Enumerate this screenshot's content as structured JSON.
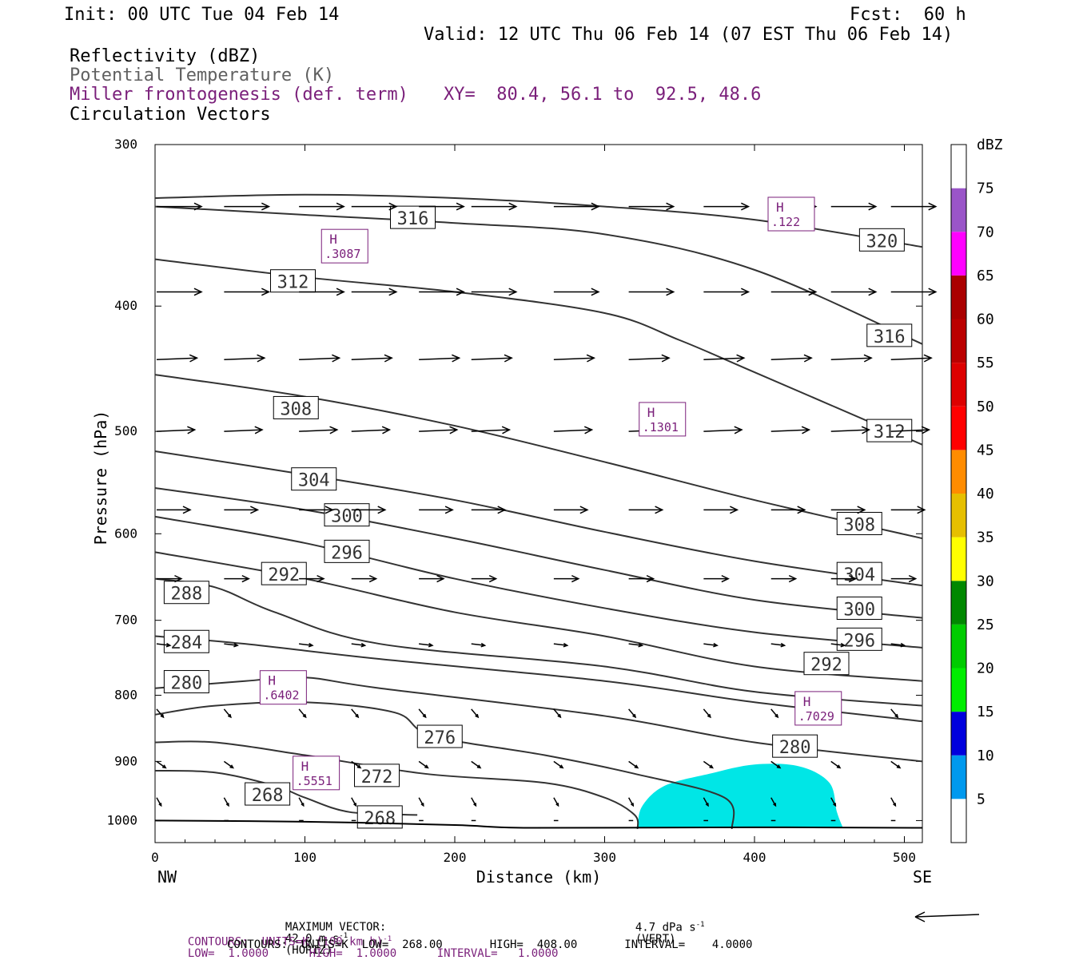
{
  "header": {
    "init": "Init: 00 UTC Tue 04 Feb 14",
    "fcst": "Fcst:  60 h",
    "valid": "Valid: 12 UTC Thu 06 Feb 14 (07 EST Thu 06 Feb 14)",
    "field1": "Reflectivity (dBZ)",
    "field2": "Potential Temperature (K)",
    "field3": "Miller frontogenesis (def. term)",
    "xy": "XY=  80.4, 56.1 to  92.5, 48.6",
    "field4": "Circulation Vectors"
  },
  "footer": {
    "max_vector_label": "MAXIMUM VECTOR:",
    "max_vector_horiz": "42.0 m s",
    "horiz_tag": "(HORIZ)",
    "max_vector_vert": "4.7 dPa s",
    "vert_tag": "(VERT)",
    "contours_purple_a": "CONTOURS:  UNITS=K (100 km h)",
    "contours_purple_b": "LOW=  1.0000      HIGH=  1.0000      INTERVAL=   1.0000",
    "contours_black": "CONTOURS:  UNITS=K  LOW=  268.00       HIGH=  408.00       INTERVAL=    4.0000",
    "sup": "-1"
  },
  "colors": {
    "theta_line": "#333333",
    "purple": "#7a1f7a",
    "reflectivity_fill": "#00e6e6"
  },
  "chart_data": {
    "type": "cross-section",
    "ylabel": "Pressure (hPa)",
    "xlabel": "Distance (km)",
    "x_left_label": "NW",
    "x_right_label": "SE",
    "x_range": [
      0,
      512
    ],
    "y_range": [
      300,
      1040
    ],
    "y_scale": "log-pressure",
    "x_ticks": [
      0,
      100,
      200,
      300,
      400,
      500
    ],
    "y_ticks": [
      300,
      400,
      500,
      600,
      700,
      800,
      900,
      1000
    ],
    "colorbar": {
      "title": "dBZ",
      "levels": [
        5,
        10,
        15,
        20,
        25,
        30,
        35,
        40,
        45,
        50,
        55,
        60,
        65,
        70,
        75
      ],
      "colors": [
        "#00e6e6",
        "#0099ee",
        "#0000dd",
        "#00ee00",
        "#00cc00",
        "#008800",
        "#ffff00",
        "#e6bf00",
        "#ff8c00",
        "#ff0000",
        "#dd0000",
        "#bb0000",
        "#aa0000",
        "#ff00ff",
        "#9a55c8",
        "#ffffff"
      ]
    },
    "theta_contours": [
      {
        "label": "320",
        "pts": [
          [
            0,
            330
          ],
          [
            100,
            328
          ],
          [
            200,
            330
          ],
          [
            300,
            335
          ],
          [
            400,
            343
          ],
          [
            512,
            360
          ]
        ],
        "lbl": [
          [
            485,
            356
          ]
        ]
      },
      {
        "label": "316",
        "pts": [
          [
            0,
            335
          ],
          [
            100,
            340
          ],
          [
            200,
            345
          ],
          [
            300,
            352
          ],
          [
            400,
            375
          ],
          [
            512,
            428
          ]
        ],
        "lbl": [
          [
            172,
            342
          ],
          [
            490,
            422
          ]
        ]
      },
      {
        "label": "312",
        "pts": [
          [
            0,
            368
          ],
          [
            100,
            380
          ],
          [
            200,
            390
          ],
          [
            300,
            405
          ],
          [
            350,
            425
          ],
          [
            400,
            450
          ],
          [
            512,
            512
          ]
        ],
        "lbl": [
          [
            92,
            383
          ],
          [
            490,
            500
          ]
        ]
      },
      {
        "label": "308",
        "pts": [
          [
            0,
            452
          ],
          [
            100,
            470
          ],
          [
            200,
            495
          ],
          [
            300,
            528
          ],
          [
            400,
            565
          ],
          [
            512,
            605
          ]
        ],
        "lbl": [
          [
            94,
            480
          ],
          [
            470,
            590
          ]
        ]
      },
      {
        "label": "304",
        "pts": [
          [
            0,
            518
          ],
          [
            100,
            540
          ],
          [
            200,
            565
          ],
          [
            300,
            598
          ],
          [
            400,
            630
          ],
          [
            512,
            658
          ]
        ],
        "lbl": [
          [
            106,
            545
          ],
          [
            470,
            645
          ]
        ]
      },
      {
        "label": "300",
        "pts": [
          [
            0,
            553
          ],
          [
            100,
            575
          ],
          [
            200,
            605
          ],
          [
            300,
            640
          ],
          [
            400,
            675
          ],
          [
            512,
            697
          ]
        ],
        "lbl": [
          [
            128,
            581
          ],
          [
            470,
            686
          ]
        ]
      },
      {
        "label": "296",
        "pts": [
          [
            0,
            582
          ],
          [
            100,
            610
          ],
          [
            200,
            650
          ],
          [
            300,
            685
          ],
          [
            400,
            715
          ],
          [
            512,
            735
          ]
        ],
        "lbl": [
          [
            128,
            620
          ],
          [
            470,
            725
          ]
        ]
      },
      {
        "label": "292",
        "pts": [
          [
            0,
            620
          ],
          [
            100,
            650
          ],
          [
            200,
            690
          ],
          [
            300,
            720
          ],
          [
            400,
            760
          ],
          [
            512,
            780
          ]
        ],
        "lbl": [
          [
            86,
            645
          ],
          [
            448,
            757
          ]
        ]
      },
      {
        "label": "288",
        "pts": [
          [
            0,
            650
          ],
          [
            40,
            660
          ],
          [
            80,
            690
          ],
          [
            150,
            730
          ],
          [
            300,
            760
          ],
          [
            400,
            795
          ],
          [
            512,
            815
          ]
        ],
        "lbl": [
          [
            21,
            667
          ]
        ]
      },
      {
        "label": "284",
        "pts": [
          [
            0,
            720
          ],
          [
            60,
            730
          ],
          [
            150,
            750
          ],
          [
            300,
            780
          ],
          [
            400,
            810
          ],
          [
            512,
            838
          ]
        ],
        "lbl": [
          [
            21,
            728
          ]
        ]
      },
      {
        "label": "280",
        "pts": [
          [
            0,
            790
          ],
          [
            60,
            780
          ],
          [
            100,
            775
          ],
          [
            150,
            790
          ],
          [
            300,
            830
          ],
          [
            400,
            870
          ],
          [
            512,
            900
          ]
        ],
        "lbl": [
          [
            21,
            782
          ],
          [
            427,
            877
          ]
        ]
      },
      {
        "label": "276",
        "pts": [
          [
            0,
            828
          ],
          [
            40,
            815
          ],
          [
            100,
            810
          ],
          [
            160,
            825
          ],
          [
            185,
            860
          ],
          [
            260,
            890
          ],
          [
            320,
            920
          ],
          [
            380,
            960
          ],
          [
            385,
            1015
          ]
        ],
        "lbl": [
          [
            190,
            862
          ]
        ]
      },
      {
        "label": "272",
        "pts": [
          [
            0,
            870
          ],
          [
            40,
            870
          ],
          [
            100,
            890
          ],
          [
            180,
            920
          ],
          [
            260,
            935
          ],
          [
            300,
            960
          ],
          [
            320,
            990
          ],
          [
            322,
            1015
          ]
        ],
        "lbl": [
          [
            148,
            924
          ]
        ]
      },
      {
        "label": "268",
        "pts": [
          [
            0,
            915
          ],
          [
            40,
            918
          ],
          [
            80,
            940
          ],
          [
            100,
            960
          ],
          [
            130,
            985
          ],
          [
            175,
            990
          ]
        ],
        "lbl": [
          [
            75,
            955
          ],
          [
            150,
            995
          ]
        ]
      }
    ],
    "ground": {
      "pts": [
        [
          0,
          1000
        ],
        [
          100,
          1002
        ],
        [
          200,
          1008
        ],
        [
          250,
          1013
        ],
        [
          400,
          1012
        ],
        [
          512,
          1013
        ]
      ]
    },
    "reflectivity_5dbz_region": [
      [
        322,
        1013
      ],
      [
        325,
        975
      ],
      [
        340,
        940
      ],
      [
        370,
        920
      ],
      [
        400,
        905
      ],
      [
        430,
        908
      ],
      [
        450,
        935
      ],
      [
        455,
        985
      ],
      [
        459,
        1013
      ]
    ],
    "frontogenesis_highs": [
      {
        "label": ".3087",
        "x": 126,
        "p": 360
      },
      {
        "label": ".122",
        "x": 424,
        "p": 340
      },
      {
        "label": ".1301",
        "x": 338,
        "p": 490
      },
      {
        "label": ".6402",
        "x": 85,
        "p": 790
      },
      {
        "label": ".7029",
        "x": 442,
        "p": 820
      },
      {
        "label": ".5551",
        "x": 107,
        "p": 920
      }
    ],
    "vector_rows": [
      {
        "p": 335,
        "xs": [
          0,
          45,
          95,
          130,
          175,
          210,
          265,
          315,
          365,
          410,
          450,
          490
        ],
        "u": 1.0,
        "w": 0.0
      },
      {
        "p": 390,
        "xs": [
          0,
          45,
          95,
          130,
          175,
          210,
          265,
          315,
          365,
          410,
          450,
          490
        ],
        "u": 1.0,
        "w": 0.0
      },
      {
        "p": 440,
        "xs": [
          0,
          45,
          95,
          130,
          175,
          210,
          265,
          315,
          365,
          410,
          450,
          490
        ],
        "u": 0.9,
        "w": -0.05
      },
      {
        "p": 500,
        "xs": [
          0,
          45,
          95,
          130,
          175,
          210,
          265,
          315,
          365,
          410,
          450,
          490
        ],
        "u": 0.85,
        "w": -0.05
      },
      {
        "p": 575,
        "xs": [
          0,
          45,
          95,
          130,
          175,
          210,
          265,
          315,
          365,
          410,
          450,
          490
        ],
        "u": 0.75,
        "w": 0.0
      },
      {
        "p": 650,
        "xs": [
          0,
          45,
          95,
          130,
          175,
          210,
          265,
          315,
          365,
          410,
          450,
          490
        ],
        "u": 0.55,
        "w": 0.0
      },
      {
        "p": 730,
        "xs": [
          0,
          45,
          95,
          130,
          175,
          210,
          265,
          315,
          365,
          410,
          450,
          490
        ],
        "u": 0.3,
        "w": 0.05
      },
      {
        "p": 820,
        "xs": [
          0,
          45,
          95,
          130,
          175,
          210,
          265,
          315,
          365,
          410,
          450,
          490
        ],
        "u": 0.15,
        "w": 0.25
      },
      {
        "p": 900,
        "xs": [
          0,
          45,
          95,
          130,
          175,
          210,
          265,
          315,
          365,
          410,
          450,
          490
        ],
        "u": 0.2,
        "w": 0.2
      },
      {
        "p": 960,
        "xs": [
          0,
          45,
          95,
          130,
          175,
          210,
          265,
          315,
          365,
          410,
          450,
          490
        ],
        "u": 0.1,
        "w": 0.25
      },
      {
        "p": 1000,
        "xs": [
          0,
          45,
          95,
          130,
          175,
          210,
          265,
          315,
          365,
          410,
          450,
          490
        ],
        "u": 0.1,
        "w": 0.0
      }
    ]
  }
}
